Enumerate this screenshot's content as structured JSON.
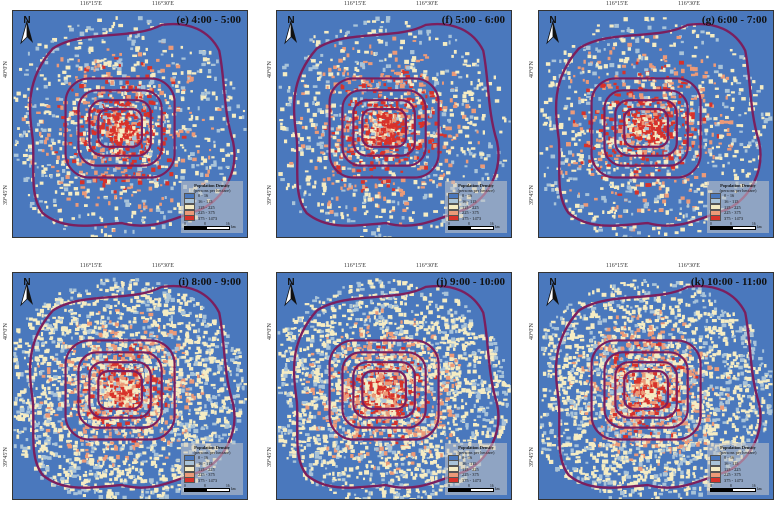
{
  "coords": {
    "lon_a": "116°15'E",
    "lon_b": "116°30'E",
    "lat_a": "40°0'N",
    "lat_b": "39°45'N"
  },
  "north_label": "N",
  "legend": {
    "title": "Population Density",
    "subtitle": "(persons per hectare)",
    "classes": [
      {
        "label": "0 - 16",
        "color": "#4a78bd"
      },
      {
        "label": "16 - 115",
        "color": "#a9c3d8"
      },
      {
        "label": "115 - 225",
        "color": "#f5ecc3"
      },
      {
        "label": "225 - 375",
        "color": "#ec9a78"
      },
      {
        "label": "375 - 1473",
        "color": "#d8322a"
      }
    ],
    "scale_labels": [
      "0",
      "8",
      "16"
    ],
    "scale_unit": "km"
  },
  "ring_color": "#7b1f5e",
  "panels": [
    {
      "title": "(e) 4:00 - 5:00"
    },
    {
      "title": "(f) 5:00 - 6:00"
    },
    {
      "title": "(g) 6:00 - 7:00"
    },
    {
      "title": "(i) 8:00 - 9:00"
    },
    {
      "title": "(j) 9:00 - 10:00"
    },
    {
      "title": "(k) 10:00 - 11:00"
    }
  ]
}
